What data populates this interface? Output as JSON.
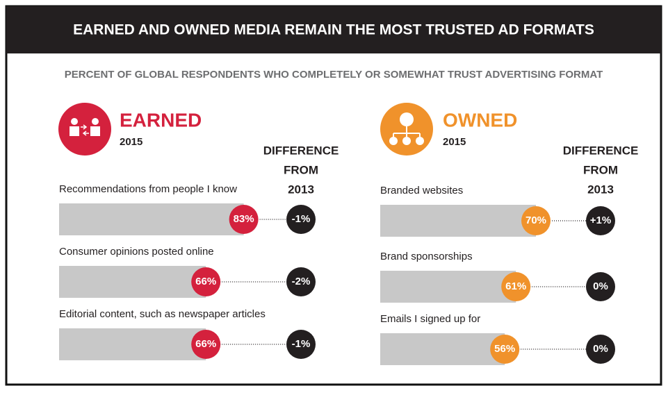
{
  "header": {
    "title": "EARNED AND OWNED MEDIA REMAIN THE MOST TRUSTED AD FORMATS",
    "subtitle": "PERCENT OF GLOBAL RESPONDENTS WHO COMPLETELY OR SOMEWHAT TRUST ADVERTISING FORMAT"
  },
  "chart_data": [
    {
      "type": "bar",
      "title": "EARNED",
      "subtitle": "2015",
      "color": "#d4213d",
      "difference_title": [
        "DIFFERENCE",
        "FROM",
        "2013"
      ],
      "categories": [
        "Recommendations from people I know",
        "Consumer opinions posted online",
        "Editorial content, such as newspaper articles"
      ],
      "values": [
        83,
        66,
        66
      ],
      "value_labels": [
        "83%",
        "66%",
        "66%"
      ],
      "differences": [
        -1,
        -2,
        -1
      ],
      "difference_labels": [
        "-1%",
        "-2%",
        "-1%"
      ]
    },
    {
      "type": "bar",
      "title": "OWNED",
      "subtitle": "2015",
      "color": "#f0922b",
      "difference_title": [
        "DIFFERENCE",
        "FROM",
        "2013"
      ],
      "categories": [
        "Branded websites",
        "Brand sponsorships",
        "Emails I signed up for"
      ],
      "values": [
        70,
        61,
        56
      ],
      "value_labels": [
        "70%",
        "61%",
        "56%"
      ],
      "differences": [
        1,
        0,
        0
      ],
      "difference_labels": [
        "+1%",
        "0%",
        "0%"
      ]
    }
  ]
}
